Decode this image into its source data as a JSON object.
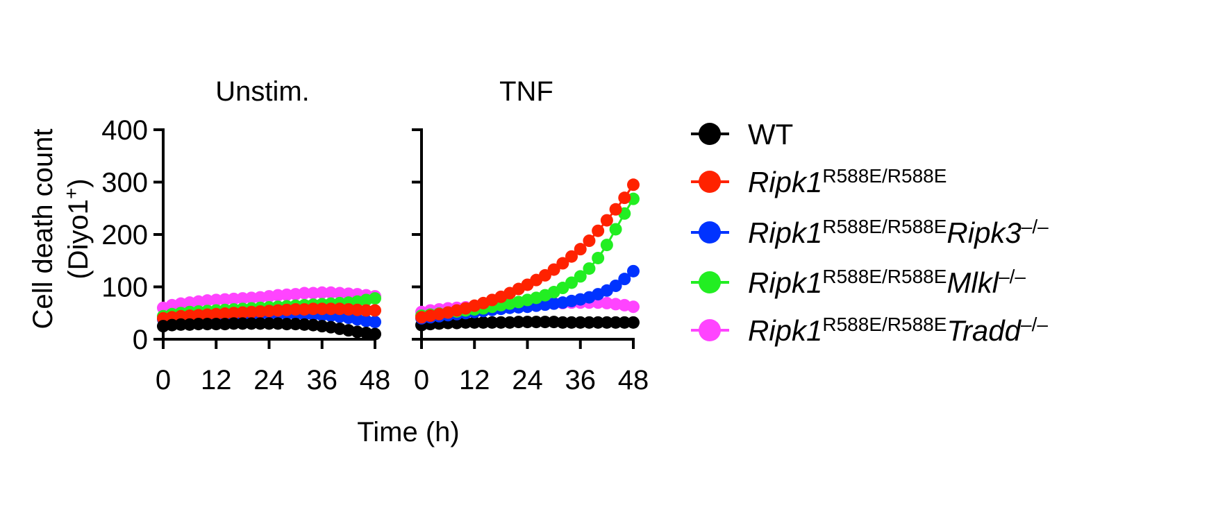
{
  "chart_data": {
    "type": "line",
    "xlabel": "Time (h)",
    "ylabel_line1": "Cell death count",
    "ylabel_line2": "(Diyo1",
    "ylabel_sup": "+",
    "ylabel_close": ")",
    "xlim": [
      0,
      48
    ],
    "ylim": [
      0,
      400
    ],
    "xticks": [
      "0",
      "12",
      "24",
      "36",
      "48"
    ],
    "yticks": [
      "0",
      "100",
      "200",
      "300",
      "400"
    ],
    "x": [
      0,
      2,
      4,
      6,
      8,
      10,
      12,
      14,
      16,
      18,
      20,
      22,
      24,
      26,
      28,
      30,
      32,
      34,
      36,
      38,
      40,
      42,
      44,
      46,
      48
    ],
    "colors": {
      "WT": "#000000",
      "R588E": "#ff2200",
      "Ripk3": "#0033ff",
      "Mlkl": "#22ee22",
      "Tradd": "#ff44ff"
    },
    "legend": [
      {
        "key": "WT",
        "gene": "WT",
        "sup": "",
        "gene2": "",
        "sup2": ""
      },
      {
        "key": "R588E",
        "gene": "Ripk1",
        "sup": "R588E/R588E",
        "gene2": "",
        "sup2": ""
      },
      {
        "key": "Ripk3",
        "gene": "Ripk1",
        "sup": "R588E/R588E",
        "gene2": "Ripk3",
        "sup2": "–/–"
      },
      {
        "key": "Mlkl",
        "gene": "Ripk1",
        "sup": "R588E/R588E",
        "gene2": "Mlkl",
        "sup2": "–/–"
      },
      {
        "key": "Tradd",
        "gene": "Ripk1",
        "sup": "R588E/R588E",
        "gene2": "Tradd",
        "sup2": "–/–"
      }
    ],
    "panels": [
      {
        "title": "Unstim.",
        "series": [
          {
            "key": "Tradd",
            "values": [
              60,
              65,
              68,
              70,
              72,
              74,
              75,
              76,
              77,
              78,
              79,
              80,
              82,
              84,
              85,
              86,
              88,
              88,
              89,
              89,
              88,
              87,
              86,
              84,
              82
            ]
          },
          {
            "key": "Mlkl",
            "values": [
              44,
              48,
              50,
              52,
              53,
              54,
              55,
              56,
              57,
              58,
              59,
              60,
              61,
              62,
              63,
              64,
              65,
              66,
              67,
              68,
              69,
              70,
              72,
              75,
              78
            ]
          },
          {
            "key": "Ripk3",
            "values": [
              38,
              40,
              42,
              43,
              44,
              45,
              45,
              46,
              46,
              47,
              47,
              48,
              48,
              48,
              48,
              48,
              47,
              47,
              46,
              45,
              43,
              41,
              38,
              35,
              33
            ]
          },
          {
            "key": "R588E",
            "values": [
              40,
              42,
              44,
              45,
              46,
              47,
              48,
              49,
              50,
              51,
              52,
              53,
              54,
              55,
              56,
              57,
              57,
              58,
              58,
              58,
              58,
              57,
              56,
              55,
              55
            ]
          },
          {
            "key": "WT",
            "values": [
              25,
              27,
              28,
              28,
              29,
              29,
              29,
              29,
              30,
              30,
              30,
              30,
              30,
              30,
              29,
              29,
              28,
              27,
              25,
              23,
              20,
              17,
              14,
              12,
              10
            ]
          }
        ]
      },
      {
        "title": "TNF",
        "series": [
          {
            "key": "Tradd",
            "values": [
              52,
              55,
              57,
              59,
              60,
              61,
              62,
              63,
              64,
              65,
              66,
              66,
              67,
              68,
              68,
              69,
              69,
              70,
              70,
              70,
              70,
              69,
              67,
              65,
              62
            ]
          },
          {
            "key": "WT",
            "values": [
              27,
              29,
              30,
              31,
              31,
              32,
              32,
              32,
              32,
              32,
              32,
              33,
              33,
              33,
              33,
              33,
              32,
              32,
              32,
              32,
              32,
              32,
              32,
              32,
              32
            ]
          },
          {
            "key": "Ripk3",
            "values": [
              40,
              42,
              44,
              46,
              48,
              50,
              52,
              54,
              56,
              58,
              60,
              61,
              62,
              64,
              66,
              68,
              70,
              73,
              76,
              80,
              86,
              93,
              102,
              115,
              130
            ]
          },
          {
            "key": "Mlkl",
            "values": [
              45,
              47,
              49,
              51,
              53,
              55,
              57,
              59,
              62,
              65,
              68,
              71,
              75,
              79,
              84,
              90,
              98,
              108,
              120,
              135,
              155,
              180,
              210,
              240,
              268
            ]
          },
          {
            "key": "R588E",
            "values": [
              42,
              45,
              48,
              51,
              55,
              59,
              64,
              69,
              75,
              81,
              88,
              96,
              104,
              113,
              122,
              133,
              145,
              158,
              172,
              188,
              207,
              227,
              248,
              270,
              295
            ]
          }
        ]
      }
    ]
  }
}
